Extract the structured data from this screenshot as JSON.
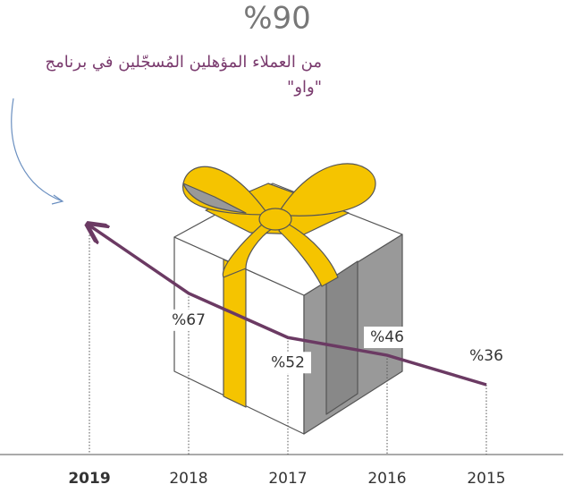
{
  "chart_data": {
    "type": "line",
    "title": "%90",
    "subtitle": "من العملاء المؤهلين المُسجّلين في برنامج \"واو\"",
    "categories": [
      "2019",
      "2018",
      "2017",
      "2016",
      "2015"
    ],
    "values": [
      90,
      67,
      52,
      46,
      36
    ],
    "value_labels": [
      "%90",
      "%67",
      "%52",
      "%46",
      "%36"
    ],
    "color": "#6b3a63"
  }
}
